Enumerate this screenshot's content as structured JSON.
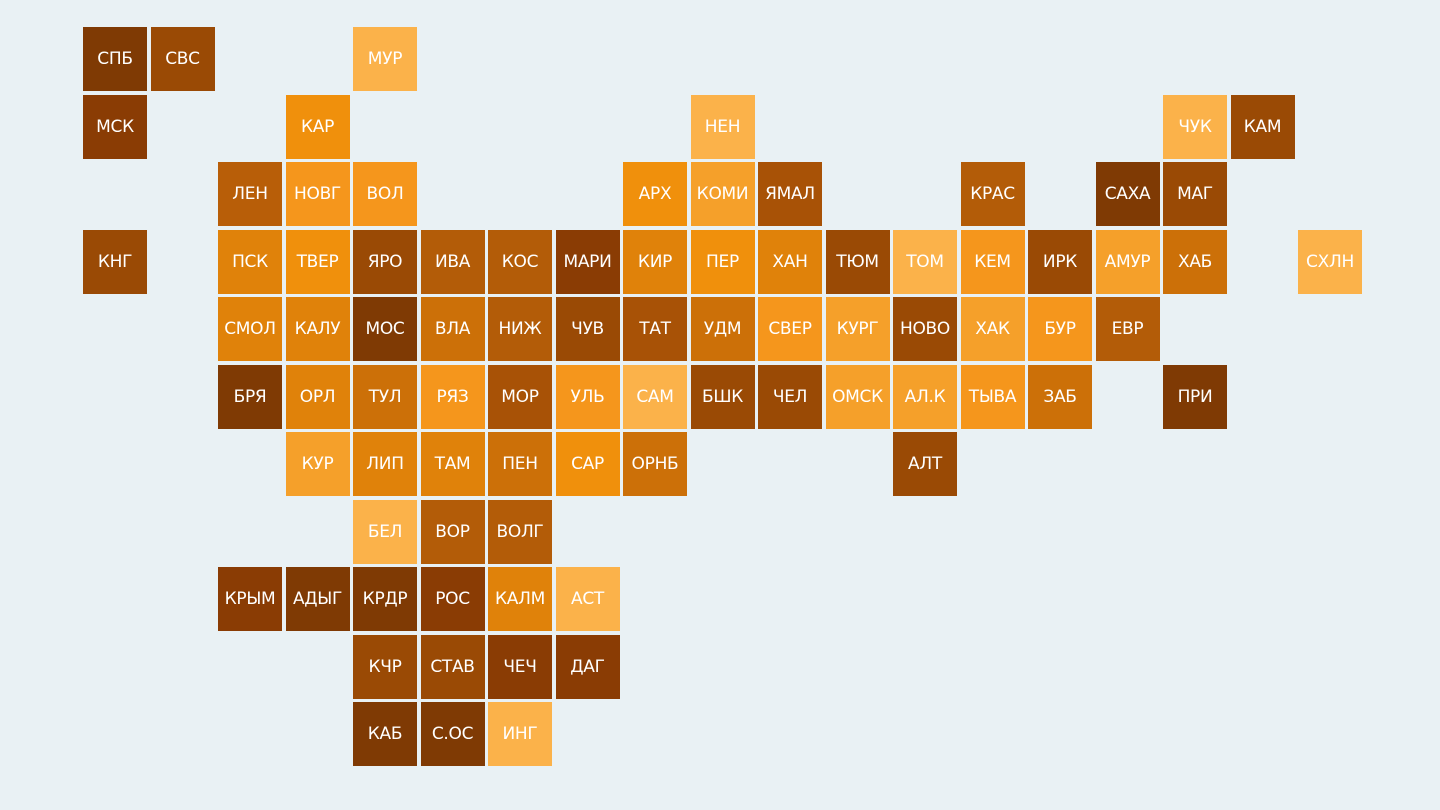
{
  "tiles": [
    {
      "label": "СПБ",
      "color": "#7f3a04"
    },
    {
      "label": "СВС",
      "color": "#9a4a05"
    },
    {
      "label": "МУР",
      "color": "#fbb24a"
    },
    {
      "label": "МСК",
      "color": "#8a3c04"
    },
    {
      "label": "КАР",
      "color": "#f0900c"
    },
    {
      "label": "НЕН",
      "color": "#fbb24a"
    },
    {
      "label": "ЧУК",
      "color": "#fbb24a"
    },
    {
      "label": "КАМ",
      "color": "#9a4a05"
    },
    {
      "label": "ЛЕН",
      "color": "#b85e08"
    },
    {
      "label": "НОВГ",
      "color": "#f5961c"
    },
    {
      "label": "ВОЛ",
      "color": "#f5961c"
    },
    {
      "label": "АРХ",
      "color": "#f0900c"
    },
    {
      "label": "КОМИ",
      "color": "#f5a02a"
    },
    {
      "label": "ЯМАЛ",
      "color": "#a85206"
    },
    {
      "label": "КРАС",
      "color": "#b35c08"
    },
    {
      "label": "САХА",
      "color": "#7f3a04"
    },
    {
      "label": "МАГ",
      "color": "#9a4a05"
    },
    {
      "label": "КНГ",
      "color": "#9a4a05"
    },
    {
      "label": "ПСК",
      "color": "#e0820a"
    },
    {
      "label": "ТВЕР",
      "color": "#f0900c"
    },
    {
      "label": "ЯРО",
      "color": "#9a4a05"
    },
    {
      "label": "ИВА",
      "color": "#b35c08"
    },
    {
      "label": "КОС",
      "color": "#b35c08"
    },
    {
      "label": "МАРИ",
      "color": "#8a3c04"
    },
    {
      "label": "КИР",
      "color": "#e0820a"
    },
    {
      "label": "ПЕР",
      "color": "#f0900c"
    },
    {
      "label": "ХАН",
      "color": "#e0820a"
    },
    {
      "label": "ТЮМ",
      "color": "#9a4a05"
    },
    {
      "label": "ТОМ",
      "color": "#fbb24a"
    },
    {
      "label": "КЕМ",
      "color": "#f5961c"
    },
    {
      "label": "ИРК",
      "color": "#9a4a05"
    },
    {
      "label": "АМУР",
      "color": "#f5a02a"
    },
    {
      "label": "ХАБ",
      "color": "#cc7008"
    },
    {
      "label": "СХЛН",
      "color": "#fbb24a"
    },
    {
      "label": "СМОЛ",
      "color": "#e0820a"
    },
    {
      "label": "КАЛУ",
      "color": "#e0820a"
    },
    {
      "label": "МОС",
      "color": "#7f3a04"
    },
    {
      "label": "ВЛА",
      "color": "#cc7008"
    },
    {
      "label": "НИЖ",
      "color": "#b35c08"
    },
    {
      "label": "ЧУВ",
      "color": "#9a4a05"
    },
    {
      "label": "ТАТ",
      "color": "#a85206"
    },
    {
      "label": "УДМ",
      "color": "#cc7008"
    },
    {
      "label": "СВЕР",
      "color": "#f5961c"
    },
    {
      "label": "КУРГ",
      "color": "#f5a02a"
    },
    {
      "label": "НОВО",
      "color": "#9a4a05"
    },
    {
      "label": "ХАК",
      "color": "#f5a02a"
    },
    {
      "label": "БУР",
      "color": "#f5961c"
    },
    {
      "label": "ЕВР",
      "color": "#b35c08"
    },
    {
      "label": "БРЯ",
      "color": "#7f3a04"
    },
    {
      "label": "ОРЛ",
      "color": "#e0820a"
    },
    {
      "label": "ТУЛ",
      "color": "#cc7008"
    },
    {
      "label": "РЯЗ",
      "color": "#f5961c"
    },
    {
      "label": "МОР",
      "color": "#a85206"
    },
    {
      "label": "УЛЬ",
      "color": "#f5961c"
    },
    {
      "label": "САМ",
      "color": "#fbb24a"
    },
    {
      "label": "БШК",
      "color": "#9a4a05"
    },
    {
      "label": "ЧЕЛ",
      "color": "#9a4a05"
    },
    {
      "label": "ОМСК",
      "color": "#f5a02a"
    },
    {
      "label": "АЛ.К",
      "color": "#f5a02a"
    },
    {
      "label": "ТЫВА",
      "color": "#f5961c"
    },
    {
      "label": "ЗАБ",
      "color": "#cc7008"
    },
    {
      "label": "ПРИ",
      "color": "#7f3a04"
    },
    {
      "label": "КУР",
      "color": "#f5a02a"
    },
    {
      "label": "ЛИП",
      "color": "#e0820a"
    },
    {
      "label": "ТАМ",
      "color": "#e0820a"
    },
    {
      "label": "ПЕН",
      "color": "#cc7008"
    },
    {
      "label": "САР",
      "color": "#f0900c"
    },
    {
      "label": "ОРНБ",
      "color": "#cc7008"
    },
    {
      "label": "АЛТ",
      "color": "#9a4a05"
    },
    {
      "label": "БЕЛ",
      "color": "#fbb24a"
    },
    {
      "label": "ВОР",
      "color": "#b35c08"
    },
    {
      "label": "ВОЛГ",
      "color": "#b35c08"
    },
    {
      "label": "КРЫМ",
      "color": "#8a3c04"
    },
    {
      "label": "АДЫГ",
      "color": "#7f3a04"
    },
    {
      "label": "КРДР",
      "color": "#7f3a04"
    },
    {
      "label": "РОС",
      "color": "#8a3c04"
    },
    {
      "label": "КАЛМ",
      "color": "#e0820a"
    },
    {
      "label": "АСТ",
      "color": "#fbb24a"
    },
    {
      "label": "КЧР",
      "color": "#9a4a05"
    },
    {
      "label": "СТАВ",
      "color": "#9a4a05"
    },
    {
      "label": "ЧЕЧ",
      "color": "#8a3c04"
    },
    {
      "label": "ДАГ",
      "color": "#8a3c04"
    },
    {
      "label": "КАБ",
      "color": "#7f3a04"
    },
    {
      "label": "С.ОС",
      "color": "#7f3a04"
    },
    {
      "label": "ИНГ",
      "color": "#fbb24a"
    }
  ]
}
